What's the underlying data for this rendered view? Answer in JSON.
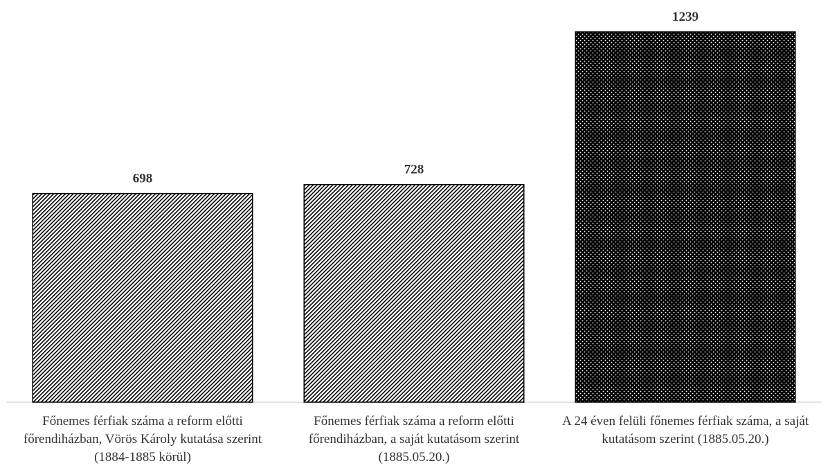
{
  "chart_data": {
    "type": "bar",
    "categories": [
      "Főnemes férfiak száma a reform előtti főrendiházban, Vörös Károly kutatása szerint (1884-1885 körül)",
      "Főnemes férfiak száma a reform előtti főrendiházban, a saját kutatásom szerint (1885.05.20.)",
      "A 24 éven felüli főnemes férfiak száma, a saját kutatásom szerint (1885.05.20.)"
    ],
    "values": [
      698,
      728,
      1239
    ],
    "patterns": [
      "diagonal",
      "diagonal",
      "dots"
    ],
    "color": "#000000"
  }
}
